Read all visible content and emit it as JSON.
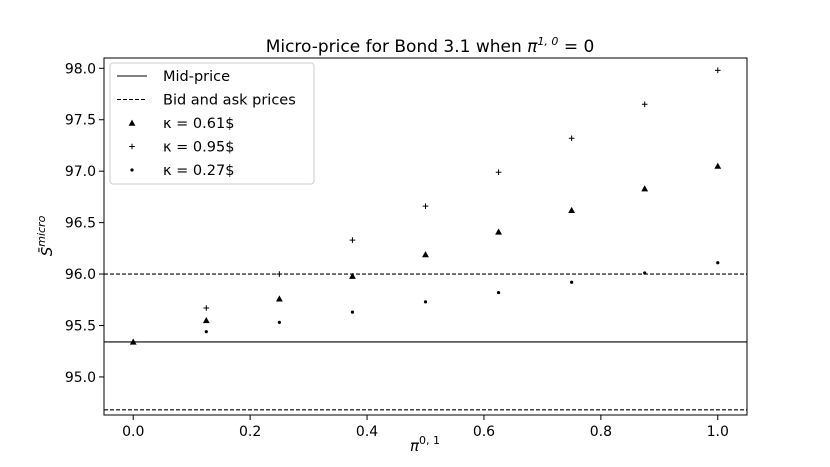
{
  "chart_data": {
    "type": "scatter",
    "title": "Micro-price for Bond 3.1 when π¹ʼ⁰ = 0",
    "title_parts": {
      "prefix": "Micro-price for Bond 3.1 when ",
      "symbol": "π",
      "sup": "1, 0",
      "suffix": " = 0"
    },
    "xlabel": {
      "symbol": "π",
      "sup": "0, 1"
    },
    "ylabel": {
      "symbol": "S̄",
      "sup": "micro"
    },
    "xlim": [
      -0.05,
      1.05
    ],
    "ylim": [
      94.63,
      98.1
    ],
    "xticks": [
      0.0,
      0.2,
      0.4,
      0.6,
      0.8,
      1.0
    ],
    "xtick_labels": [
      "0.0",
      "0.2",
      "0.4",
      "0.6",
      "0.8",
      "1.0"
    ],
    "yticks": [
      95.0,
      95.5,
      96.0,
      96.5,
      97.0,
      97.5,
      98.0
    ],
    "ytick_labels": [
      "95.0",
      "95.5",
      "96.0",
      "96.5",
      "97.0",
      "97.5",
      "98.0"
    ],
    "hlines": [
      {
        "name": "Mid-price",
        "y": 95.34,
        "style": "solid"
      },
      {
        "name": "Bid and ask prices",
        "y": 96.0,
        "style": "dashed"
      },
      {
        "name": "Bid and ask prices",
        "y": 94.68,
        "style": "dashed"
      }
    ],
    "series": [
      {
        "name": "κ = 0.61$",
        "marker": "triangle",
        "x": [
          0.0,
          0.125,
          0.25,
          0.375,
          0.5,
          0.625,
          0.75,
          0.875,
          1.0
        ],
        "y": [
          95.34,
          95.55,
          95.76,
          95.98,
          96.19,
          96.41,
          96.62,
          96.83,
          97.05
        ]
      },
      {
        "name": "κ = 0.95$",
        "marker": "plus",
        "x": [
          0.125,
          0.25,
          0.375,
          0.5,
          0.625,
          0.75,
          0.875,
          1.0
        ],
        "y": [
          95.67,
          96.0,
          96.33,
          96.66,
          96.99,
          97.32,
          97.65,
          97.98
        ]
      },
      {
        "name": "κ = 0.27$",
        "marker": "dot",
        "x": [
          0.125,
          0.25,
          0.375,
          0.5,
          0.625,
          0.75,
          0.875,
          1.0
        ],
        "y": [
          95.44,
          95.53,
          95.63,
          95.73,
          95.82,
          95.92,
          96.01,
          96.11
        ]
      }
    ],
    "legend": {
      "placement": "upper-left",
      "entries": [
        {
          "label": "Mid-price",
          "style": "solid-line"
        },
        {
          "label": "Bid and ask prices",
          "style": "dashed-line"
        },
        {
          "label": "κ = 0.61$",
          "style": "triangle"
        },
        {
          "label": "κ = 0.95$",
          "style": "plus"
        },
        {
          "label": "κ = 0.27$",
          "style": "dot"
        }
      ]
    },
    "grid": false
  }
}
